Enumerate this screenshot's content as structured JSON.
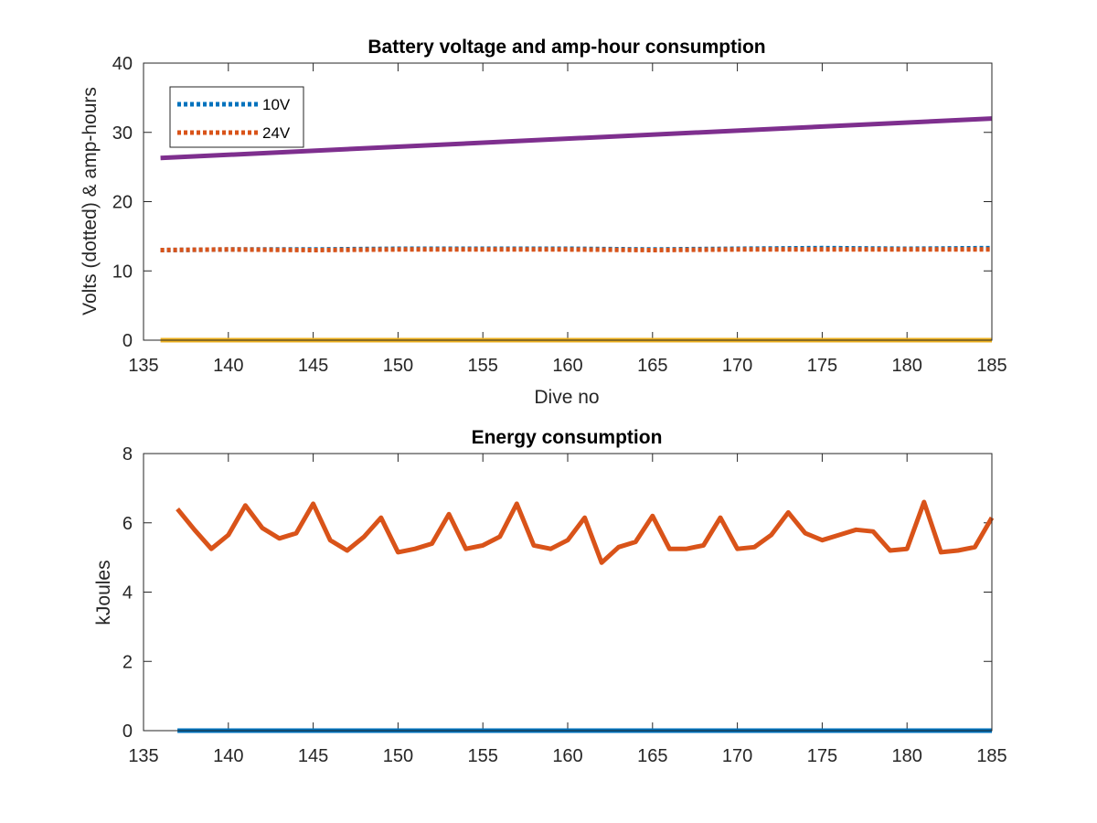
{
  "chart_data": [
    {
      "type": "line",
      "title": "Battery voltage and amp-hour consumption",
      "xlabel": "Dive no",
      "ylabel": "Volts (dotted) & amp-hours",
      "xlim": [
        135,
        185
      ],
      "ylim": [
        0,
        40
      ],
      "xticks": [
        135,
        140,
        145,
        150,
        155,
        160,
        165,
        170,
        175,
        180,
        185
      ],
      "yticks": [
        0,
        10,
        20,
        30,
        40
      ],
      "grid": false,
      "legend_position": "top-left",
      "series": [
        {
          "name": "10V",
          "style": "dotted",
          "color": "#0072BD",
          "x": [
            136,
            140,
            145,
            150,
            155,
            160,
            165,
            170,
            175,
            180,
            185
          ],
          "y": [
            13.0,
            13.1,
            13.1,
            13.2,
            13.2,
            13.2,
            13.1,
            13.2,
            13.3,
            13.2,
            13.3
          ]
        },
        {
          "name": "24V",
          "style": "dotted",
          "color": "#D95319",
          "x": [
            136,
            140,
            145,
            150,
            155,
            160,
            165,
            170,
            175,
            180,
            185
          ],
          "y": [
            13.0,
            13.1,
            13.0,
            13.1,
            13.1,
            13.1,
            13.0,
            13.1,
            13.1,
            13.1,
            13.1
          ]
        },
        {
          "style": "solid",
          "color": "#EDB120",
          "x": [
            136,
            185
          ],
          "y": [
            0,
            0
          ]
        },
        {
          "style": "solid",
          "color": "#7E2F8E",
          "x": [
            136,
            185
          ],
          "y": [
            26.3,
            32.0
          ]
        }
      ]
    },
    {
      "type": "line",
      "title": "Energy consumption",
      "xlabel": "",
      "ylabel": "kJoules",
      "xlim": [
        135,
        185
      ],
      "ylim": [
        0,
        8
      ],
      "xticks": [
        135,
        140,
        145,
        150,
        155,
        160,
        165,
        170,
        175,
        180,
        185
      ],
      "yticks": [
        0,
        2,
        4,
        6,
        8
      ],
      "grid": false,
      "series": [
        {
          "style": "solid",
          "color": "#0072BD",
          "x": [
            137,
            185
          ],
          "y": [
            0,
            0
          ]
        },
        {
          "style": "solid",
          "color": "#D95319",
          "x": [
            137,
            138,
            139,
            140,
            141,
            142,
            143,
            144,
            145,
            146,
            147,
            148,
            149,
            150,
            151,
            152,
            153,
            154,
            155,
            156,
            157,
            158,
            159,
            160,
            161,
            162,
            163,
            164,
            165,
            166,
            167,
            168,
            169,
            170,
            171,
            172,
            173,
            174,
            175,
            176,
            177,
            178,
            179,
            180,
            181,
            182,
            183,
            184,
            185
          ],
          "y": [
            6.4,
            5.8,
            5.25,
            5.65,
            6.5,
            5.85,
            5.55,
            5.7,
            6.55,
            5.5,
            5.2,
            5.6,
            6.15,
            5.15,
            5.25,
            5.4,
            6.25,
            5.25,
            5.35,
            5.6,
            6.55,
            5.35,
            5.25,
            5.5,
            6.15,
            4.85,
            5.3,
            5.45,
            6.2,
            5.25,
            5.25,
            5.35,
            6.15,
            5.25,
            5.3,
            5.65,
            6.3,
            5.7,
            5.5,
            5.65,
            5.8,
            5.75,
            5.2,
            5.25,
            6.6,
            5.15,
            5.2,
            5.3,
            6.15
          ]
        }
      ]
    }
  ]
}
